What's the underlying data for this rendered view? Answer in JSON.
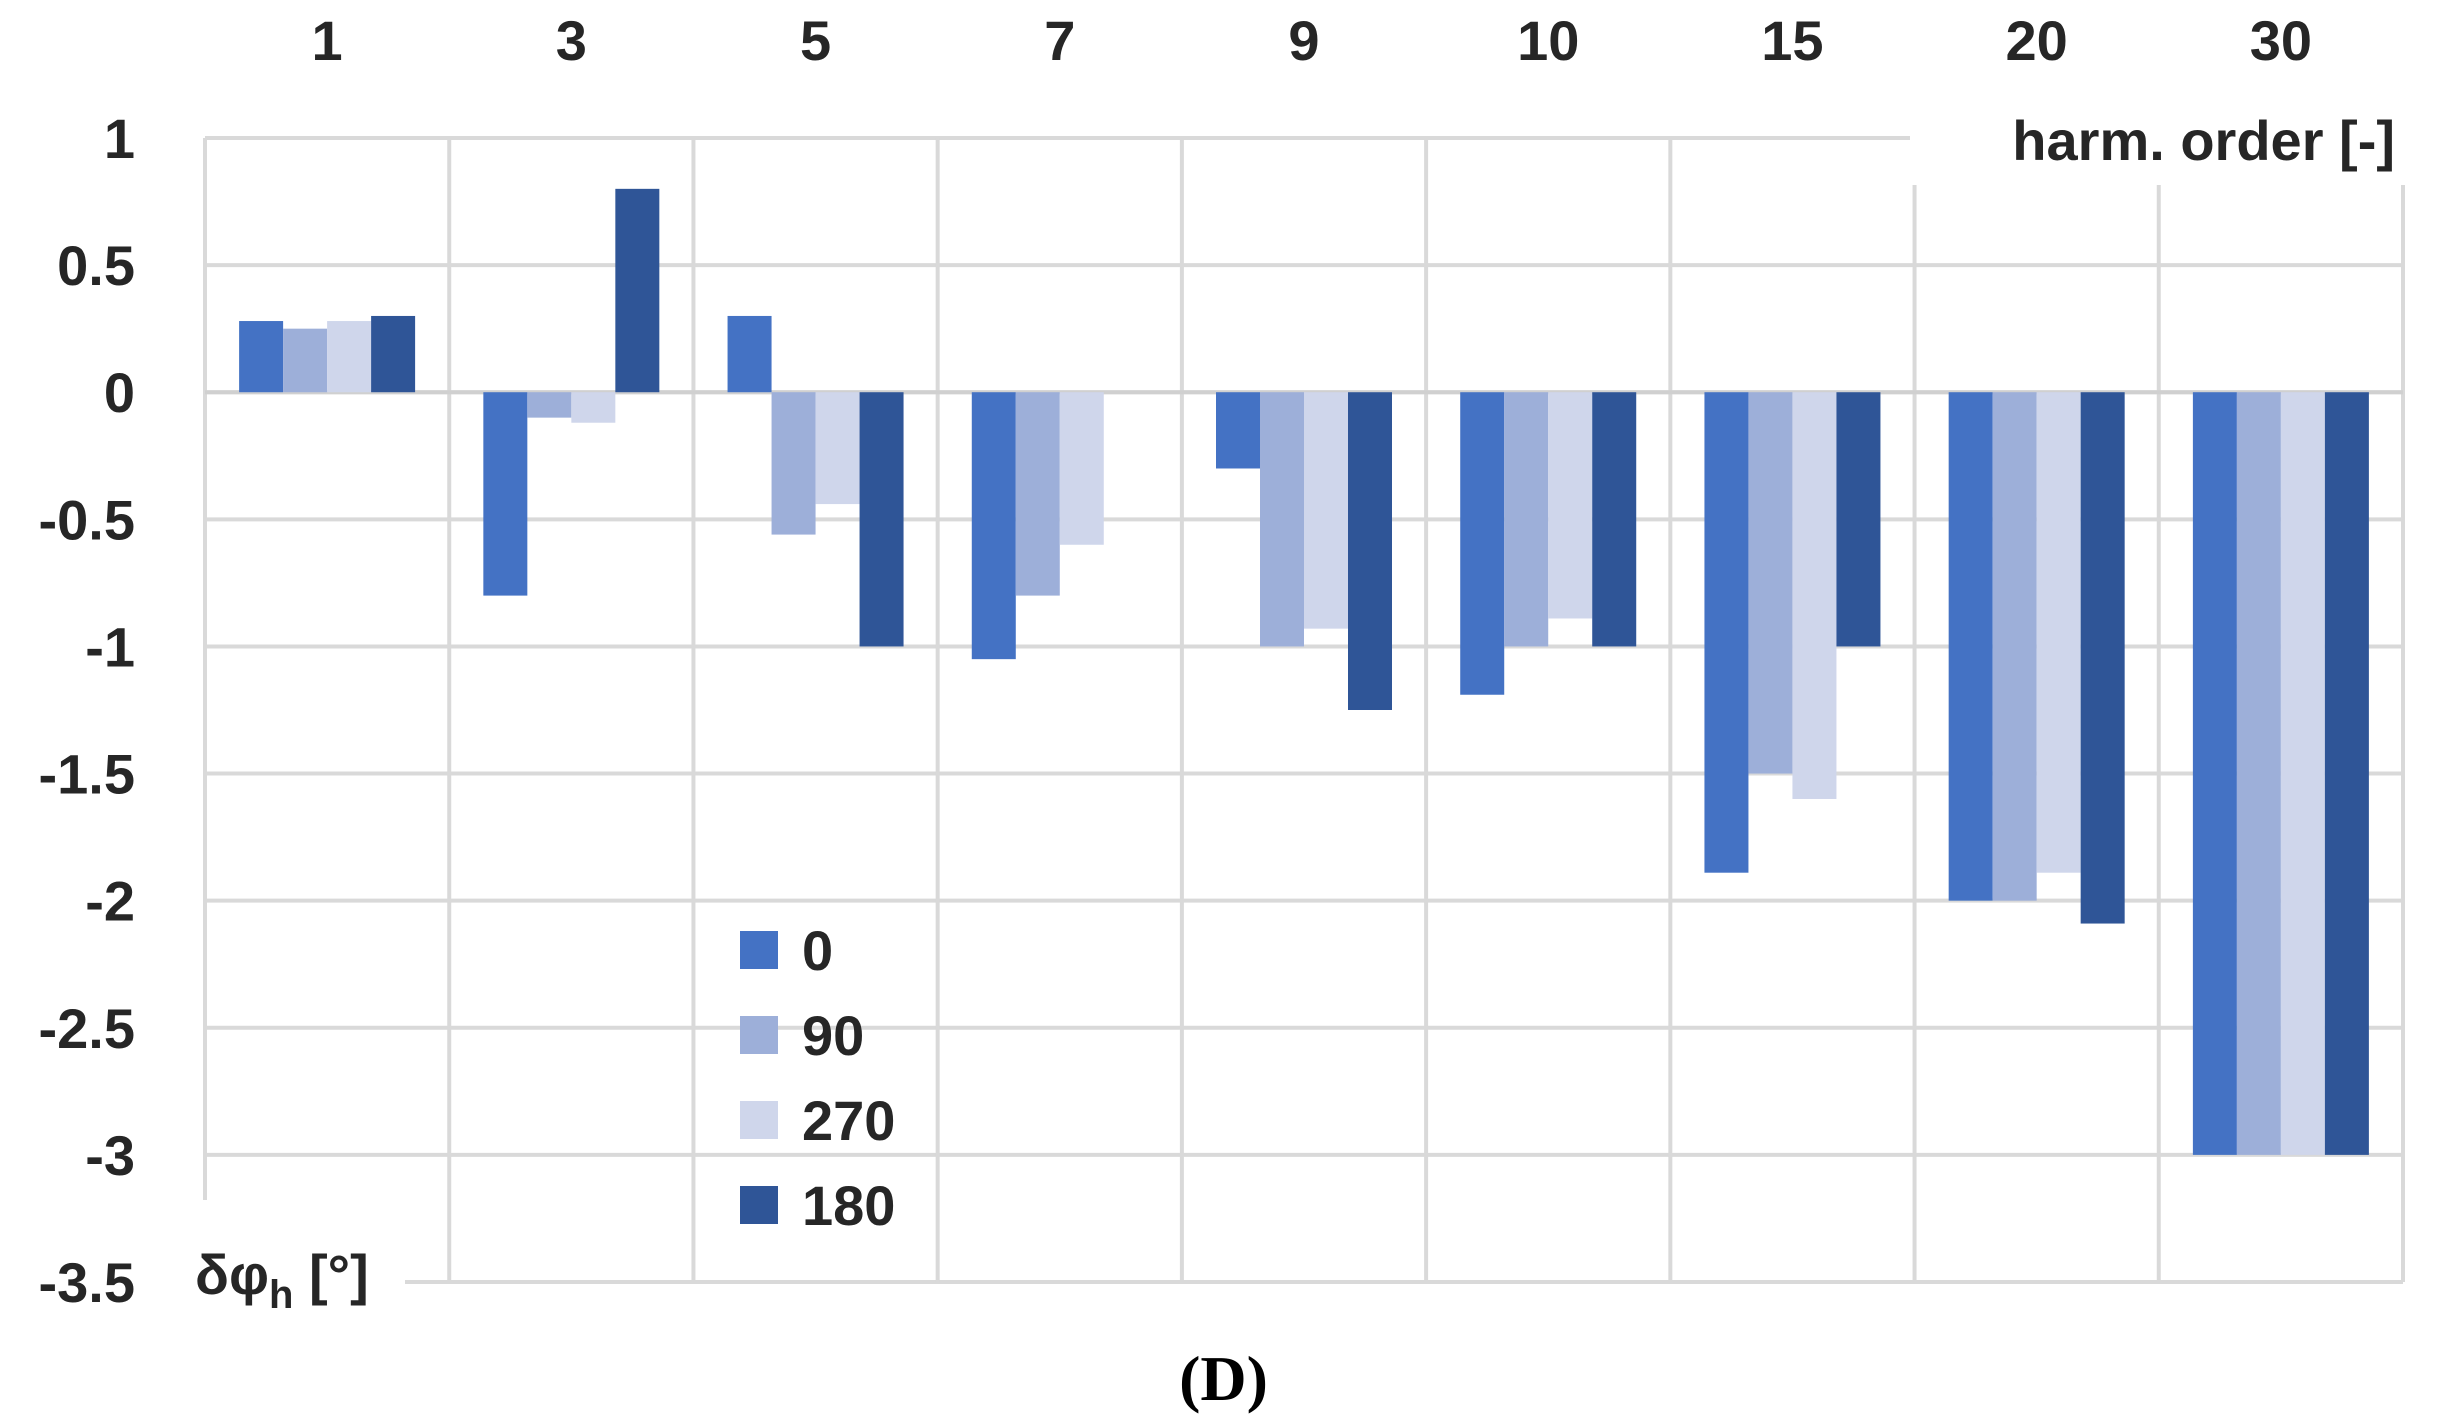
{
  "chart_data": {
    "type": "bar",
    "categories": [
      "1",
      "3",
      "5",
      "7",
      "9",
      "10",
      "15",
      "20",
      "30"
    ],
    "series": [
      {
        "name": "0",
        "color": "#4472c4",
        "values": [
          0.28,
          -0.8,
          0.3,
          -1.05,
          -0.3,
          -1.19,
          -1.89,
          -2.0,
          -3.0
        ]
      },
      {
        "name": "90",
        "color": "#9dafd9",
        "values": [
          0.25,
          -0.1,
          -0.56,
          -0.8,
          -1.0,
          -1.0,
          -1.5,
          -2.0,
          -3.0
        ]
      },
      {
        "name": "270",
        "color": "#cfd6eb",
        "values": [
          0.28,
          -0.12,
          -0.44,
          -0.6,
          -0.93,
          -0.89,
          -1.6,
          -1.89,
          -3.0
        ]
      },
      {
        "name": "180",
        "color": "#2f5597",
        "values": [
          0.3,
          0.8,
          -1.0,
          0.0,
          -1.25,
          -1.0,
          -1.0,
          -2.09,
          -3.0
        ]
      }
    ],
    "xlabel": "harm. order [-]",
    "ylabel_main": "δφ",
    "ylabel_sub": "h",
    "ylabel_unit": " [°]",
    "ylim": [
      -3.5,
      1
    ],
    "yticks": [
      "1",
      "0.5",
      "0",
      "-0.5",
      "-1",
      "-1.5",
      "-2",
      "-2.5",
      "-3",
      "-3.5"
    ],
    "grid": true,
    "x_axis_position": "top",
    "legend_position": "lower-left inside plot",
    "panel_label": "(D)"
  }
}
